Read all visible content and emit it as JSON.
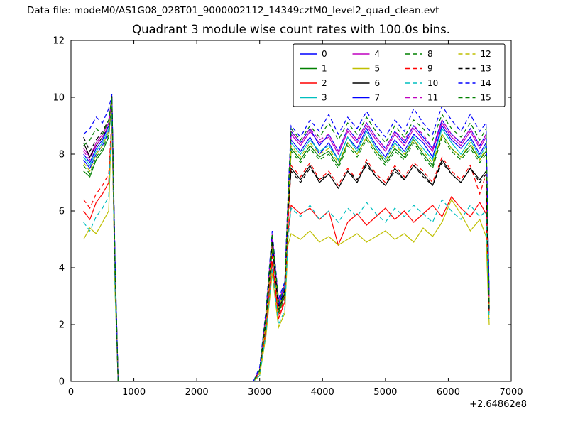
{
  "header": {
    "data_file_label": "Data file: modeM0/AS1G08_028T01_9000002112_14349cztM0_level2_quad_clean.evt"
  },
  "chart_data": {
    "type": "line",
    "title": "Quadrant 3 module wise count rates with 100.0s bins.",
    "xlabel": "",
    "ylabel": "",
    "x_offset_label": "+2.64862e8",
    "xlim": [
      0,
      7000
    ],
    "ylim": [
      0,
      12
    ],
    "xticks": [
      0,
      1000,
      2000,
      3000,
      4000,
      5000,
      6000,
      7000
    ],
    "yticks": [
      0,
      2,
      4,
      6,
      8,
      10,
      12
    ],
    "grid": false,
    "legend_position": "upper center-right",
    "legend_columns": 4,
    "x": [
      200,
      300,
      400,
      500,
      600,
      650,
      700,
      750,
      1000,
      1500,
      2000,
      2500,
      2900,
      3000,
      3100,
      3200,
      3300,
      3400,
      3450,
      3500,
      3650,
      3800,
      3950,
      4100,
      4250,
      4400,
      4550,
      4700,
      4850,
      5000,
      5150,
      5300,
      5450,
      5600,
      5750,
      5900,
      6050,
      6200,
      6350,
      6500,
      6600,
      6650
    ],
    "series": [
      {
        "name": "0",
        "color": "#0000ff",
        "linestyle": "solid",
        "values": [
          7.8,
          7.5,
          8.0,
          8.3,
          8.8,
          9.6,
          4.0,
          0,
          0,
          0,
          0,
          0,
          0,
          0.4,
          2.2,
          4.6,
          2.6,
          3.2,
          6.0,
          8.5,
          8.1,
          8.6,
          8.0,
          8.4,
          7.8,
          8.6,
          8.2,
          8.9,
          8.3,
          7.9,
          8.5,
          8.1,
          8.7,
          8.4,
          7.9,
          9.0,
          8.5,
          8.2,
          8.6,
          8.0,
          8.4,
          2.8
        ]
      },
      {
        "name": "1",
        "color": "#008000",
        "linestyle": "solid",
        "values": [
          7.4,
          7.2,
          7.8,
          8.1,
          8.6,
          9.9,
          3.8,
          0,
          0,
          0,
          0,
          0,
          0,
          0.3,
          2.0,
          5.0,
          2.4,
          3.0,
          5.6,
          8.2,
          7.8,
          8.3,
          7.9,
          8.1,
          7.6,
          8.4,
          8.0,
          8.6,
          8.1,
          7.7,
          8.2,
          7.9,
          8.5,
          8.0,
          7.6,
          8.7,
          8.2,
          7.9,
          8.3,
          7.8,
          8.1,
          2.6
        ]
      },
      {
        "name": "2",
        "color": "#ff0000",
        "linestyle": "solid",
        "values": [
          6.0,
          5.7,
          6.3,
          6.6,
          7.0,
          9.2,
          3.5,
          0,
          0,
          0,
          0,
          0,
          0,
          0.3,
          1.8,
          4.2,
          2.2,
          2.8,
          5.2,
          6.2,
          5.9,
          6.1,
          5.7,
          6.0,
          4.8,
          5.6,
          5.9,
          5.5,
          5.8,
          6.1,
          5.7,
          6.0,
          5.6,
          5.9,
          6.2,
          5.8,
          6.5,
          6.1,
          5.8,
          6.3,
          5.9,
          2.4
        ]
      },
      {
        "name": "3",
        "color": "#00bfbf",
        "linestyle": "solid",
        "values": [
          7.9,
          7.6,
          8.1,
          8.4,
          8.9,
          9.8,
          4.1,
          0,
          0,
          0,
          0,
          0,
          0,
          0.4,
          2.3,
          4.8,
          2.7,
          3.3,
          6.1,
          8.4,
          8.0,
          8.5,
          8.1,
          8.3,
          7.8,
          8.6,
          8.1,
          8.8,
          8.2,
          7.8,
          8.4,
          8.0,
          8.6,
          8.2,
          7.8,
          8.9,
          8.4,
          8.0,
          8.5,
          7.9,
          8.3,
          2.7
        ]
      },
      {
        "name": "4",
        "color": "#bf00bf",
        "linestyle": "solid",
        "values": [
          8.2,
          7.9,
          8.4,
          8.7,
          9.1,
          10.0,
          4.2,
          0,
          0,
          0,
          0,
          0,
          0,
          0.4,
          2.4,
          5.2,
          2.8,
          3.4,
          6.3,
          8.7,
          8.3,
          8.8,
          8.4,
          8.6,
          8.0,
          8.8,
          8.4,
          9.0,
          8.5,
          8.1,
          8.7,
          8.3,
          8.9,
          8.5,
          8.1,
          9.1,
          8.6,
          8.3,
          8.8,
          8.2,
          8.6,
          2.9
        ]
      },
      {
        "name": "5",
        "color": "#bfbf00",
        "linestyle": "solid",
        "values": [
          5.0,
          5.4,
          5.2,
          5.6,
          6.0,
          9.5,
          3.2,
          0,
          0,
          0,
          0,
          0,
          0,
          0.2,
          1.6,
          3.8,
          1.9,
          2.4,
          4.8,
          5.2,
          5.0,
          5.3,
          4.9,
          5.1,
          4.8,
          5.0,
          5.2,
          4.9,
          5.1,
          5.3,
          5.0,
          5.2,
          4.9,
          5.4,
          5.1,
          5.6,
          6.4,
          5.9,
          5.3,
          5.7,
          5.1,
          2.0
        ]
      },
      {
        "name": "6",
        "color": "#000000",
        "linestyle": "solid",
        "values": [
          8.4,
          7.9,
          8.3,
          8.6,
          9.0,
          10.05,
          4.1,
          0,
          0,
          0,
          0,
          0,
          0,
          0.4,
          2.2,
          4.9,
          2.5,
          3.1,
          5.9,
          7.5,
          7.1,
          7.6,
          7.0,
          7.3,
          6.8,
          7.4,
          7.0,
          7.7,
          7.2,
          6.9,
          7.5,
          7.1,
          7.6,
          7.3,
          6.9,
          7.8,
          7.3,
          7.0,
          7.5,
          7.1,
          7.4,
          2.5
        ]
      },
      {
        "name": "7",
        "color": "#0000ff",
        "linestyle": "solid",
        "values": [
          8.0,
          7.7,
          8.2,
          8.5,
          9.0,
          9.9,
          4.2,
          0,
          0,
          0,
          0,
          0,
          0,
          0.4,
          2.3,
          5.1,
          2.7,
          3.3,
          6.2,
          8.8,
          8.4,
          8.9,
          8.3,
          8.7,
          8.1,
          8.9,
          8.5,
          9.1,
          8.6,
          8.2,
          8.8,
          8.4,
          9.0,
          8.6,
          8.2,
          9.2,
          8.7,
          8.4,
          8.9,
          8.3,
          8.7,
          3.0
        ]
      },
      {
        "name": "8",
        "color": "#008000",
        "linestyle": "dashed",
        "values": [
          7.6,
          7.3,
          7.9,
          8.2,
          8.7,
          9.7,
          3.9,
          0,
          0,
          0,
          0,
          0,
          0,
          0.3,
          2.1,
          4.7,
          2.5,
          3.1,
          5.8,
          8.1,
          7.7,
          8.2,
          7.8,
          8.0,
          7.5,
          8.3,
          7.9,
          8.5,
          8.0,
          7.6,
          8.1,
          7.8,
          8.4,
          7.9,
          7.5,
          8.6,
          8.1,
          7.8,
          8.2,
          7.7,
          8.0,
          2.6
        ]
      },
      {
        "name": "9",
        "color": "#ff0000",
        "linestyle": "dashed",
        "values": [
          6.4,
          6.1,
          6.6,
          6.9,
          7.3,
          9.3,
          3.6,
          0,
          0,
          0,
          0,
          0,
          0,
          0.3,
          1.9,
          4.4,
          2.3,
          2.9,
          5.4,
          7.6,
          7.2,
          7.7,
          7.1,
          7.4,
          6.9,
          7.5,
          7.1,
          7.8,
          7.3,
          7.0,
          7.6,
          7.2,
          7.7,
          7.4,
          7.0,
          7.9,
          7.4,
          7.1,
          7.6,
          6.6,
          7.3,
          2.4
        ]
      },
      {
        "name": "10",
        "color": "#00bfbf",
        "linestyle": "dashed",
        "values": [
          5.6,
          5.3,
          5.8,
          6.1,
          6.5,
          9.4,
          3.3,
          0,
          0,
          0,
          0,
          0,
          0,
          0.2,
          1.7,
          4.0,
          2.0,
          2.5,
          5.0,
          6.1,
          5.8,
          6.2,
          5.7,
          6.0,
          5.6,
          6.1,
          5.8,
          6.3,
          5.9,
          5.6,
          6.1,
          5.8,
          6.2,
          5.9,
          5.6,
          6.4,
          6.0,
          5.7,
          6.2,
          5.8,
          6.0,
          2.2
        ]
      },
      {
        "name": "11",
        "color": "#bf00bf",
        "linestyle": "dashed",
        "values": [
          8.1,
          7.8,
          8.3,
          8.6,
          9.0,
          9.9,
          4.2,
          0,
          0,
          0,
          0,
          0,
          0,
          0.4,
          2.4,
          5.1,
          2.8,
          3.4,
          6.3,
          8.8,
          8.4,
          8.9,
          8.5,
          8.7,
          8.1,
          8.9,
          8.5,
          9.1,
          8.6,
          8.2,
          8.8,
          8.5,
          9.0,
          8.7,
          8.2,
          9.2,
          8.7,
          8.4,
          8.9,
          8.3,
          8.7,
          2.9
        ]
      },
      {
        "name": "12",
        "color": "#bfbf00",
        "linestyle": "dashed",
        "values": [
          7.7,
          7.4,
          8.0,
          8.3,
          8.8,
          9.8,
          4.0,
          0,
          0,
          0,
          0,
          0,
          0,
          0.3,
          2.1,
          4.8,
          2.6,
          3.2,
          5.9,
          8.3,
          7.9,
          8.4,
          8.0,
          8.2,
          7.7,
          8.4,
          8.0,
          8.6,
          8.1,
          7.8,
          8.3,
          8.0,
          8.5,
          8.1,
          7.7,
          8.7,
          8.2,
          7.9,
          8.4,
          7.8,
          8.2,
          2.7
        ]
      },
      {
        "name": "13",
        "color": "#000000",
        "linestyle": "dashed",
        "values": [
          8.6,
          8.1,
          8.5,
          8.8,
          9.2,
          10.0,
          4.1,
          0,
          0,
          0,
          0,
          0,
          0,
          0.4,
          2.2,
          4.9,
          2.6,
          3.2,
          6.0,
          7.4,
          7.0,
          7.5,
          7.1,
          7.3,
          6.8,
          7.4,
          7.1,
          7.6,
          7.2,
          6.9,
          7.4,
          7.1,
          7.6,
          7.2,
          6.9,
          7.7,
          7.3,
          7.0,
          7.5,
          7.0,
          7.3,
          2.5
        ]
      },
      {
        "name": "14",
        "color": "#0000ff",
        "linestyle": "dashed",
        "values": [
          8.7,
          8.9,
          9.3,
          9.1,
          9.6,
          10.1,
          4.4,
          0,
          0,
          0,
          0,
          0,
          0,
          0.5,
          2.5,
          5.3,
          2.9,
          3.5,
          6.5,
          9.0,
          8.6,
          9.2,
          8.8,
          9.4,
          8.7,
          9.3,
          8.9,
          9.5,
          9.0,
          8.6,
          9.2,
          8.8,
          9.6,
          9.1,
          8.7,
          9.7,
          9.2,
          8.8,
          9.4,
          8.8,
          9.1,
          3.1
        ]
      },
      {
        "name": "15",
        "color": "#008000",
        "linestyle": "dashed",
        "values": [
          8.3,
          8.5,
          8.9,
          8.7,
          9.2,
          10.0,
          4.3,
          0,
          0,
          0,
          0,
          0,
          0,
          0.4,
          2.4,
          5.2,
          2.8,
          3.4,
          6.4,
          8.9,
          8.5,
          9.0,
          8.6,
          9.1,
          8.5,
          9.1,
          8.7,
          9.3,
          8.8,
          8.4,
          9.0,
          8.6,
          9.2,
          8.9,
          8.5,
          9.4,
          8.9,
          8.6,
          9.1,
          8.5,
          8.9,
          2.8
        ]
      }
    ]
  }
}
